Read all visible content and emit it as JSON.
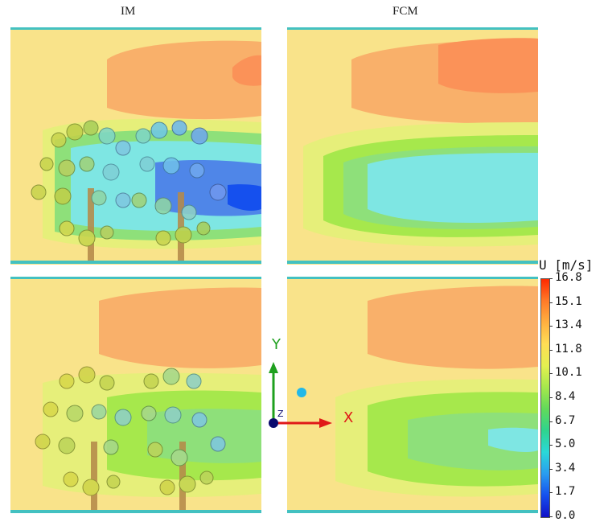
{
  "columns": {
    "left_title": "IM",
    "right_title": "FCM"
  },
  "colorbar": {
    "title": "U [m/s]",
    "ticks": [
      "16.8",
      "15.1",
      "13.4",
      "11.8",
      "10.1",
      "8.4",
      "6.7",
      "5.0",
      "3.4",
      "1.7",
      "0.0"
    ],
    "colors": [
      "#ff2a00",
      "#ff7a28",
      "#ffb040",
      "#ffdd55",
      "#e4f050",
      "#a6e84c",
      "#62da5a",
      "#2fd48e",
      "#2ad8d8",
      "#2a9cf0",
      "#1550ee",
      "#1010c8"
    ]
  },
  "axes": {
    "x_label": "X",
    "y_label": "Y",
    "z_label": "Z",
    "x_color": "#e01818",
    "y_color": "#1fa01f",
    "z_color": "#0a0a6e"
  },
  "field_colors": {
    "background": "#f9e38a",
    "fast": "#f9b06a",
    "fastest": "#fb9258",
    "mid": "#e6ef7a",
    "slow_cyan": "#7ee6e3",
    "slow_green": "#8ee07a",
    "slowest": "#4f86e8",
    "wall": "#43c1c1"
  },
  "panels": [
    {
      "position": "top-left",
      "has_trees": true,
      "wake_level": "slow"
    },
    {
      "position": "top-right",
      "has_trees": false,
      "wake_level": "slow"
    },
    {
      "position": "bottom-left",
      "has_trees": true,
      "wake_level": "moderate"
    },
    {
      "position": "bottom-right",
      "has_trees": false,
      "wake_level": "moderate"
    }
  ]
}
